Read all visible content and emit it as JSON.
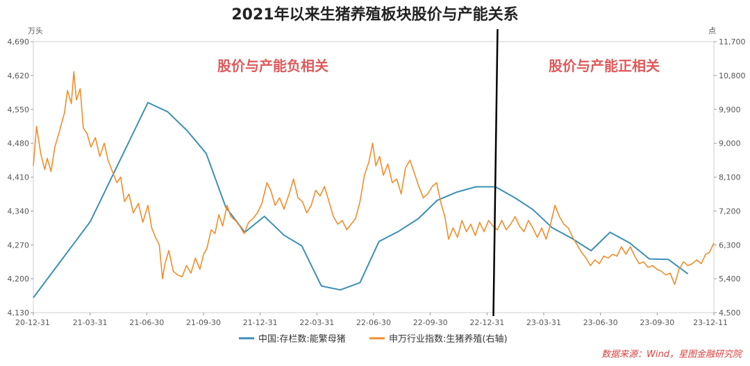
{
  "chart_data": {
    "type": "line",
    "title": "2021年以来生猪养殖板块股价与产能关系",
    "left_unit": "万头",
    "right_unit": "点",
    "y_left": {
      "min": 4130,
      "max": 4690,
      "ticks": [
        "4,130",
        "4,200",
        "4,270",
        "4,340",
        "4,410",
        "4,480",
        "4,550",
        "4,620",
        "4,690"
      ]
    },
    "y_right": {
      "min": 4500,
      "max": 11700,
      "ticks": [
        "4,500",
        "5,400",
        "6,300",
        "7,200",
        "8,100",
        "9,000",
        "9,900",
        "10,800",
        "11,700"
      ]
    },
    "x_labels": [
      "20-12-31",
      "21-03-31",
      "21-06-30",
      "21-09-30",
      "21-12-31",
      "22-03-31",
      "22-06-30",
      "22-09-30",
      "22-12-31",
      "23-03-31",
      "23-06-30",
      "23-09-30",
      "23-12-11"
    ],
    "x_range": [
      "2020-12-31",
      "2023-12-11"
    ],
    "divider_date": "2022-12-31",
    "annotations": [
      {
        "text": "股价与产能负相关",
        "side": "left"
      },
      {
        "text": "股价与产能正相关",
        "side": "right"
      }
    ],
    "series": [
      {
        "name": "中国:存栏数:能繁母猪",
        "axis": "left",
        "color": "#3a8fb7",
        "points": [
          [
            "2020-12-31",
            4161
          ],
          [
            "2021-03-31",
            4318
          ],
          [
            "2021-06-30",
            4564
          ],
          [
            "2021-07-31",
            4545
          ],
          [
            "2021-08-31",
            4506
          ],
          [
            "2021-09-30",
            4459
          ],
          [
            "2021-10-31",
            4348
          ],
          [
            "2021-11-30",
            4296
          ],
          [
            "2021-12-31",
            4329
          ],
          [
            "2022-01-31",
            4290
          ],
          [
            "2022-02-28",
            4268
          ],
          [
            "2022-03-31",
            4185
          ],
          [
            "2022-04-30",
            4177
          ],
          [
            "2022-05-31",
            4192
          ],
          [
            "2022-06-30",
            4277
          ],
          [
            "2022-07-31",
            4298
          ],
          [
            "2022-08-31",
            4324
          ],
          [
            "2022-09-30",
            4362
          ],
          [
            "2022-10-31",
            4379
          ],
          [
            "2022-11-30",
            4390
          ],
          [
            "2022-12-31",
            4390
          ],
          [
            "2023-01-31",
            4367
          ],
          [
            "2023-02-28",
            4343
          ],
          [
            "2023-03-31",
            4305
          ],
          [
            "2023-04-30",
            4284
          ],
          [
            "2023-05-31",
            4258
          ],
          [
            "2023-06-30",
            4296
          ],
          [
            "2023-07-31",
            4274
          ],
          [
            "2023-08-31",
            4241
          ],
          [
            "2023-09-30",
            4240
          ],
          [
            "2023-10-31",
            4210
          ]
        ]
      },
      {
        "name": "申万行业指数:生猪养殖(右轴)",
        "axis": "right",
        "color": "#f28c28",
        "points": [
          [
            "2020-12-31",
            8400
          ],
          [
            "2021-01-05",
            9450
          ],
          [
            "2021-01-12",
            8700
          ],
          [
            "2021-01-18",
            8300
          ],
          [
            "2021-01-22",
            8600
          ],
          [
            "2021-01-28",
            8250
          ],
          [
            "2021-02-03",
            8900
          ],
          [
            "2021-02-10",
            9300
          ],
          [
            "2021-02-18",
            9800
          ],
          [
            "2021-02-23",
            10400
          ],
          [
            "2021-03-01",
            10050
          ],
          [
            "2021-03-05",
            10900
          ],
          [
            "2021-03-09",
            10150
          ],
          [
            "2021-03-15",
            10450
          ],
          [
            "2021-03-20",
            9400
          ],
          [
            "2021-03-26",
            9250
          ],
          [
            "2021-04-01",
            8900
          ],
          [
            "2021-04-08",
            9150
          ],
          [
            "2021-04-15",
            8650
          ],
          [
            "2021-04-22",
            9000
          ],
          [
            "2021-04-28",
            8550
          ],
          [
            "2021-05-06",
            8200
          ],
          [
            "2021-05-12",
            7950
          ],
          [
            "2021-05-18",
            8100
          ],
          [
            "2021-05-24",
            7450
          ],
          [
            "2021-05-31",
            7650
          ],
          [
            "2021-06-07",
            7150
          ],
          [
            "2021-06-15",
            7400
          ],
          [
            "2021-06-22",
            6900
          ],
          [
            "2021-06-30",
            7350
          ],
          [
            "2021-07-06",
            6750
          ],
          [
            "2021-07-12",
            6500
          ],
          [
            "2021-07-18",
            6300
          ],
          [
            "2021-07-23",
            5400
          ],
          [
            "2021-07-27",
            5800
          ],
          [
            "2021-08-02",
            6150
          ],
          [
            "2021-08-09",
            5600
          ],
          [
            "2021-08-16",
            5500
          ],
          [
            "2021-08-23",
            5450
          ],
          [
            "2021-08-30",
            5750
          ],
          [
            "2021-09-06",
            5550
          ],
          [
            "2021-09-13",
            5950
          ],
          [
            "2021-09-20",
            5650
          ],
          [
            "2021-09-26",
            6050
          ],
          [
            "2021-10-01",
            6200
          ],
          [
            "2021-10-08",
            6700
          ],
          [
            "2021-10-14",
            6600
          ],
          [
            "2021-10-20",
            7100
          ],
          [
            "2021-10-26",
            6800
          ],
          [
            "2021-11-02",
            7350
          ],
          [
            "2021-11-08",
            7050
          ],
          [
            "2021-11-15",
            6950
          ],
          [
            "2021-11-22",
            6800
          ],
          [
            "2021-11-29",
            6600
          ],
          [
            "2021-12-06",
            6900
          ],
          [
            "2021-12-13",
            7000
          ],
          [
            "2021-12-20",
            7150
          ],
          [
            "2021-12-27",
            7400
          ],
          [
            "2022-01-04",
            7950
          ],
          [
            "2022-01-10",
            7750
          ],
          [
            "2022-01-17",
            7350
          ],
          [
            "2022-01-24",
            7550
          ],
          [
            "2022-01-31",
            7250
          ],
          [
            "2022-02-08",
            7650
          ],
          [
            "2022-02-15",
            8050
          ],
          [
            "2022-02-22",
            7550
          ],
          [
            "2022-03-01",
            7450
          ],
          [
            "2022-03-08",
            7150
          ],
          [
            "2022-03-15",
            7350
          ],
          [
            "2022-03-22",
            7750
          ],
          [
            "2022-03-29",
            7600
          ],
          [
            "2022-04-05",
            7850
          ],
          [
            "2022-04-12",
            7450
          ],
          [
            "2022-04-19",
            7050
          ],
          [
            "2022-04-26",
            6850
          ],
          [
            "2022-05-03",
            6950
          ],
          [
            "2022-05-10",
            6700
          ],
          [
            "2022-05-17",
            6850
          ],
          [
            "2022-05-24",
            7000
          ],
          [
            "2022-05-31",
            7450
          ],
          [
            "2022-06-07",
            8150
          ],
          [
            "2022-06-14",
            8500
          ],
          [
            "2022-06-20",
            9000
          ],
          [
            "2022-06-25",
            8400
          ],
          [
            "2022-07-01",
            8650
          ],
          [
            "2022-07-07",
            8150
          ],
          [
            "2022-07-14",
            8450
          ],
          [
            "2022-07-21",
            7950
          ],
          [
            "2022-07-28",
            8050
          ],
          [
            "2022-08-04",
            7650
          ],
          [
            "2022-08-11",
            8350
          ],
          [
            "2022-08-18",
            8550
          ],
          [
            "2022-08-25",
            8200
          ],
          [
            "2022-09-01",
            7850
          ],
          [
            "2022-09-08",
            7550
          ],
          [
            "2022-09-15",
            7650
          ],
          [
            "2022-09-22",
            7850
          ],
          [
            "2022-09-29",
            7950
          ],
          [
            "2022-10-06",
            7400
          ],
          [
            "2022-10-12",
            7050
          ],
          [
            "2022-10-18",
            6450
          ],
          [
            "2022-10-25",
            6750
          ],
          [
            "2022-11-01",
            6500
          ],
          [
            "2022-11-08",
            6950
          ],
          [
            "2022-11-15",
            6650
          ],
          [
            "2022-11-22",
            6850
          ],
          [
            "2022-11-29",
            6550
          ],
          [
            "2022-12-06",
            6900
          ],
          [
            "2022-12-13",
            6650
          ],
          [
            "2022-12-20",
            6950
          ],
          [
            "2022-12-27",
            6800
          ],
          [
            "2023-01-03",
            6700
          ],
          [
            "2023-01-10",
            6950
          ],
          [
            "2023-01-17",
            6700
          ],
          [
            "2023-01-24",
            6850
          ],
          [
            "2023-01-31",
            7050
          ],
          [
            "2023-02-07",
            6800
          ],
          [
            "2023-02-14",
            6650
          ],
          [
            "2023-02-21",
            6950
          ],
          [
            "2023-02-28",
            6750
          ],
          [
            "2023-03-07",
            6500
          ],
          [
            "2023-03-14",
            6750
          ],
          [
            "2023-03-21",
            6450
          ],
          [
            "2023-03-28",
            6850
          ],
          [
            "2023-04-04",
            7350
          ],
          [
            "2023-04-11",
            7050
          ],
          [
            "2023-04-18",
            6850
          ],
          [
            "2023-04-25",
            6750
          ],
          [
            "2023-05-02",
            6500
          ],
          [
            "2023-05-09",
            6300
          ],
          [
            "2023-05-16",
            6100
          ],
          [
            "2023-05-23",
            5950
          ],
          [
            "2023-05-30",
            5750
          ],
          [
            "2023-06-06",
            5900
          ],
          [
            "2023-06-13",
            5800
          ],
          [
            "2023-06-20",
            6000
          ],
          [
            "2023-06-27",
            5950
          ],
          [
            "2023-07-04",
            6050
          ],
          [
            "2023-07-11",
            6000
          ],
          [
            "2023-07-18",
            6250
          ],
          [
            "2023-07-25",
            6050
          ],
          [
            "2023-08-01",
            6250
          ],
          [
            "2023-08-08",
            6000
          ],
          [
            "2023-08-15",
            5800
          ],
          [
            "2023-08-22",
            5850
          ],
          [
            "2023-08-29",
            5700
          ],
          [
            "2023-09-05",
            5750
          ],
          [
            "2023-09-12",
            5650
          ],
          [
            "2023-09-19",
            5600
          ],
          [
            "2023-09-26",
            5500
          ],
          [
            "2023-10-03",
            5550
          ],
          [
            "2023-10-10",
            5250
          ],
          [
            "2023-10-17",
            5650
          ],
          [
            "2023-10-24",
            5850
          ],
          [
            "2023-10-31",
            5750
          ],
          [
            "2023-11-07",
            5800
          ],
          [
            "2023-11-14",
            5900
          ],
          [
            "2023-11-21",
            5800
          ],
          [
            "2023-11-28",
            6050
          ],
          [
            "2023-12-04",
            6100
          ],
          [
            "2023-12-11",
            6350
          ]
        ]
      }
    ],
    "source": "数据来源：Wind，星图金融研究院"
  }
}
